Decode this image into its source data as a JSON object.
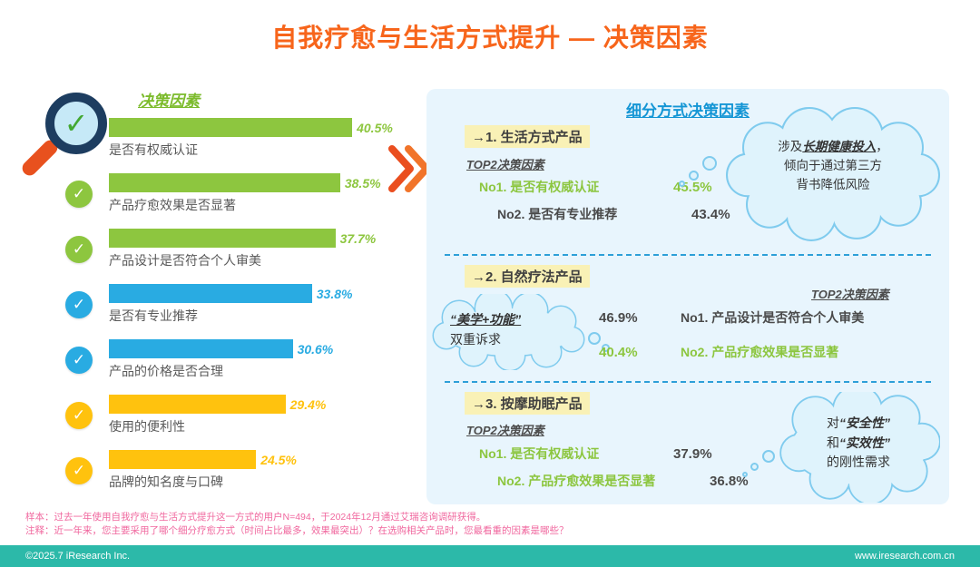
{
  "page_title": "自我疗愈与生活方式提升 — 决策因素",
  "icons": {
    "check": "✓"
  },
  "left_chart": {
    "title": "决策因素",
    "bars": [
      {
        "label": "是否有权威认证",
        "value": 40.5,
        "display": "40.5%",
        "color": "#8DC63F"
      },
      {
        "label": "产品疗愈效果是否显著",
        "value": 38.5,
        "display": "38.5%",
        "color": "#8DC63F"
      },
      {
        "label": "产品设计是否符合个人审美",
        "value": 37.7,
        "display": "37.7%",
        "color": "#8DC63F"
      },
      {
        "label": "是否有专业推荐",
        "value": 33.8,
        "display": "33.8%",
        "color": "#29ABE2"
      },
      {
        "label": "产品的价格是否合理",
        "value": 30.6,
        "display": "30.6%",
        "color": "#29ABE2"
      },
      {
        "label": "使用的便利性",
        "value": 29.4,
        "display": "29.4%",
        "color": "#FFC20E"
      },
      {
        "label": "品牌的知名度与口碑",
        "value": 24.5,
        "display": "24.5%",
        "color": "#FFC20E"
      }
    ]
  },
  "panel": {
    "title": "细分方式决策因素",
    "sections": [
      {
        "heading": "→1. 生活方式产品",
        "top2_label": "TOP2决策因素",
        "items": [
          {
            "rank_label": "No1. 是否有权威认证",
            "value": "45.5%"
          },
          {
            "rank_label": "No2. 是否有专业推荐",
            "value": "43.4%"
          }
        ],
        "cloud": {
          "l1a": "涉及",
          "l1b": "长期健康投入",
          "l1c": "，",
          "l2": "倾向于通过第三方",
          "l3": "背书降低风险"
        }
      },
      {
        "heading": "→2. 自然疗法产品",
        "top2_label": "TOP2决策因素",
        "items": [
          {
            "value": "46.9%",
            "rank_label": "No1. 产品设计是否符合个人审美"
          },
          {
            "value": "40.4%",
            "rank_label": "No2. 产品疗愈效果是否显著"
          }
        ],
        "cloud": {
          "l1": "“美学+功能”",
          "l2": "双重诉求"
        }
      },
      {
        "heading": "→3. 按摩助眠产品",
        "top2_label": "TOP2决策因素",
        "items": [
          {
            "rank_label": "No1. 是否有权威认证",
            "value": "37.9%"
          },
          {
            "rank_label": "No2. 产品疗愈效果是否显著",
            "value": "36.8%"
          }
        ],
        "cloud": {
          "l1a": "对",
          "l1b": "“安全性”",
          "l2a": "和",
          "l2b": "“实效性”",
          "l3": "的刚性需求"
        }
      }
    ]
  },
  "footnotes": [
    "样本：过去一年使用自我疗愈与生活方式提升这一方式的用户N=494，于2024年12月通过艾瑞咨询调研获得。",
    "注释：近一年来，您主要采用了哪个细分疗愈方式（时间占比最多，效果最突出）？在选购相关产品时，您最看重的因素是哪些？"
  ],
  "footer": {
    "left": "©2025.7 iResearch Inc.",
    "right": "www.iresearch.com.cn"
  },
  "chart_data": [
    {
      "type": "bar",
      "orientation": "horizontal",
      "title": "决策因素",
      "categories": [
        "是否有权威认证",
        "产品疗愈效果是否显著",
        "产品设计是否符合个人审美",
        "是否有专业推荐",
        "产品的价格是否合理",
        "使用的便利性",
        "品牌的知名度与口碑"
      ],
      "values": [
        40.5,
        38.5,
        37.7,
        33.8,
        30.6,
        29.4,
        24.5
      ],
      "unit": "%",
      "xlim": [
        0,
        45
      ],
      "bar_colors": [
        "#8DC63F",
        "#8DC63F",
        "#8DC63F",
        "#29ABE2",
        "#29ABE2",
        "#FFC20E",
        "#FFC20E"
      ]
    },
    {
      "type": "table",
      "title": "细分方式决策因素",
      "columns": [
        "细分方式",
        "No1 决策因素",
        "No1 占比",
        "No2 决策因素",
        "No2 占比"
      ],
      "rows": [
        [
          "生活方式产品",
          "是否有权威认证",
          "45.5%",
          "是否有专业推荐",
          "43.4%"
        ],
        [
          "自然疗法产品",
          "产品设计是否符合个人审美",
          "46.9%",
          "产品疗愈效果是否显著",
          "40.4%"
        ],
        [
          "按摩助眠产品",
          "是否有权威认证",
          "37.9%",
          "产品疗愈效果是否显著",
          "36.8%"
        ]
      ]
    }
  ]
}
